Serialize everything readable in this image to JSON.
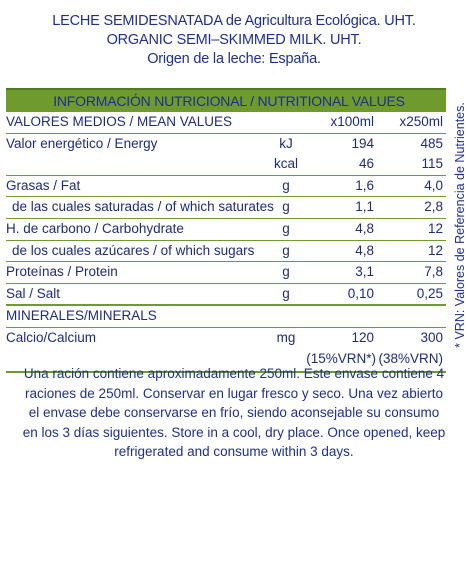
{
  "header": {
    "line1": "LECHE SEMIDESNATADA  de Agricultura Ecológica. UHT.",
    "line2": "ORGANIC SEMI–SKIMMED MILK. UHT.",
    "line3": "Origen de la leche: España."
  },
  "table": {
    "title": "INFORMACIÓN NUTRICIONAL / NUTRITIONAL VALUES",
    "header_row": {
      "label": "VALORES MEDIOS / MEAN VALUES",
      "col1": "x100ml",
      "col2": "x250ml"
    },
    "rows": [
      {
        "label": "Valor energético / Energy",
        "unit": "kJ",
        "v1": "194",
        "v2": "485"
      },
      {
        "label": "",
        "unit": "kcal",
        "v1": "46",
        "v2": "115"
      },
      {
        "label": "Grasas / Fat",
        "unit": "g",
        "v1": "1,6",
        "v2": "4,0"
      },
      {
        "label": "de las cuales saturadas  / of which saturates",
        "unit": "g",
        "v1": "1,1",
        "v2": "2,8"
      },
      {
        "label": "H. de carbono / Carbohydrate",
        "unit": "g",
        "v1": "4,8",
        "v2": "12"
      },
      {
        "label": "de los cuales azúcares  / of which sugars",
        "unit": "g",
        "v1": "4,8",
        "v2": "12"
      },
      {
        "label": "Proteínas / Protein",
        "unit": "g",
        "v1": "3,1",
        "v2": "7,8"
      },
      {
        "label": "Sal / Salt",
        "unit": "g",
        "v1": "0,10",
        "v2": "0,25"
      }
    ],
    "minerals_header": "MINERALES/MINERALS",
    "calcium": {
      "label": "Calcio/Calcium",
      "unit": "mg",
      "v1": "120",
      "v2": "300",
      "vrn1": "(15%VRN*)",
      "vrn2": "(38%VRN)"
    }
  },
  "side_note": "* VRN: Valores de Referencia de Nutrientes.",
  "footer": {
    "text": "Una ración contiene aproximadamente 250ml. Este envase contiene 4 raciones de 250ml. Conservar en lugar fresco y seco. Una vez abierto el envase debe conservarse en frío, siendo aconsejable su consumo en los 3 días siguientes. Store in a cool, dry place. Once opened, keep refrigerated and consume within 3 days."
  }
}
